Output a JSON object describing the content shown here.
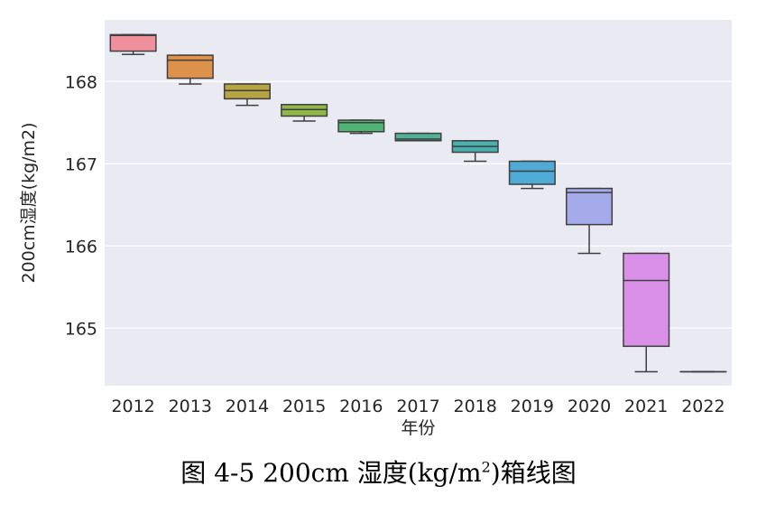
{
  "chart_data": {
    "type": "box",
    "xlabel": "年份",
    "ylabel": "200cm湿度(kg/m2)",
    "ylim": [
      164.3,
      168.75
    ],
    "yticks": [
      165,
      166,
      167,
      168
    ],
    "grid": true,
    "categories": [
      "2012",
      "2013",
      "2014",
      "2015",
      "2016",
      "2017",
      "2018",
      "2019",
      "2020",
      "2021",
      "2022"
    ],
    "colors": [
      "#f0909c",
      "#de914a",
      "#b8a444",
      "#8fb848",
      "#4fb373",
      "#4fb198",
      "#4aafae",
      "#4fabd5",
      "#a5aaeb",
      "#da90e9",
      "#f28bc4"
    ],
    "boxes": [
      {
        "min": 168.33,
        "q1": 168.37,
        "median": 168.56,
        "q3": 168.57,
        "max": 168.57
      },
      {
        "min": 167.97,
        "q1": 168.04,
        "median": 168.26,
        "q3": 168.32,
        "max": 168.32
      },
      {
        "min": 167.71,
        "q1": 167.79,
        "median": 167.89,
        "q3": 167.97,
        "max": 167.97
      },
      {
        "min": 167.52,
        "q1": 167.58,
        "median": 167.66,
        "q3": 167.72,
        "max": 167.72
      },
      {
        "min": 167.37,
        "q1": 167.39,
        "median": 167.5,
        "q3": 167.53,
        "max": 167.53
      },
      {
        "min": 167.28,
        "q1": 167.28,
        "median": 167.3,
        "q3": 167.37,
        "max": 167.37
      },
      {
        "min": 167.03,
        "q1": 167.14,
        "median": 167.21,
        "q3": 167.28,
        "max": 167.28
      },
      {
        "min": 166.7,
        "q1": 166.75,
        "median": 166.91,
        "q3": 167.03,
        "max": 167.03
      },
      {
        "min": 165.91,
        "q1": 166.26,
        "median": 166.65,
        "q3": 166.7,
        "max": 166.7
      },
      {
        "min": 164.47,
        "q1": 164.78,
        "median": 165.58,
        "q3": 165.91,
        "max": 165.91
      },
      {
        "min": 164.47,
        "q1": 164.47,
        "median": 164.47,
        "q3": 164.47,
        "max": 164.47
      }
    ]
  },
  "caption": {
    "prefix": "图 4-5 200cm 湿度(kg/m",
    "sup": "2",
    "suffix": ")箱线图"
  }
}
